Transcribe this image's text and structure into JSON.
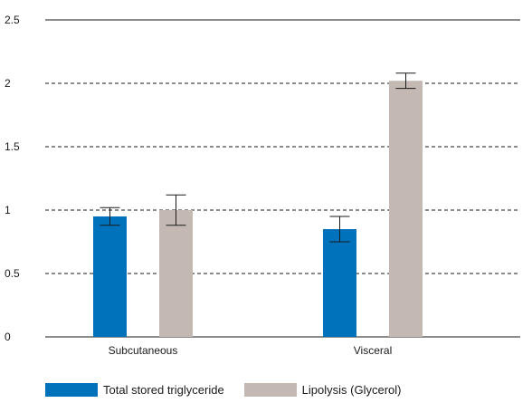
{
  "chart_data": {
    "type": "bar",
    "categories": [
      "Subcutaneous",
      "Visceral"
    ],
    "series": [
      {
        "name": "Total stored triglyceride",
        "color": "#0072bc",
        "values": [
          0.95,
          0.85
        ],
        "error": [
          0.07,
          0.1
        ]
      },
      {
        "name": "Lipolysis (Glycerol)",
        "color": "#c3b9b2",
        "values": [
          1.0,
          2.02
        ],
        "error": [
          0.12,
          0.06
        ]
      }
    ],
    "ylim": [
      0,
      2.5
    ],
    "yticks": [
      0,
      0.5,
      1,
      1.5,
      2,
      2.5
    ],
    "ytick_labels": [
      "0",
      "0.5",
      "1",
      "1.5",
      "2",
      "2.5"
    ],
    "grid": true,
    "legend_position": "bottom"
  }
}
